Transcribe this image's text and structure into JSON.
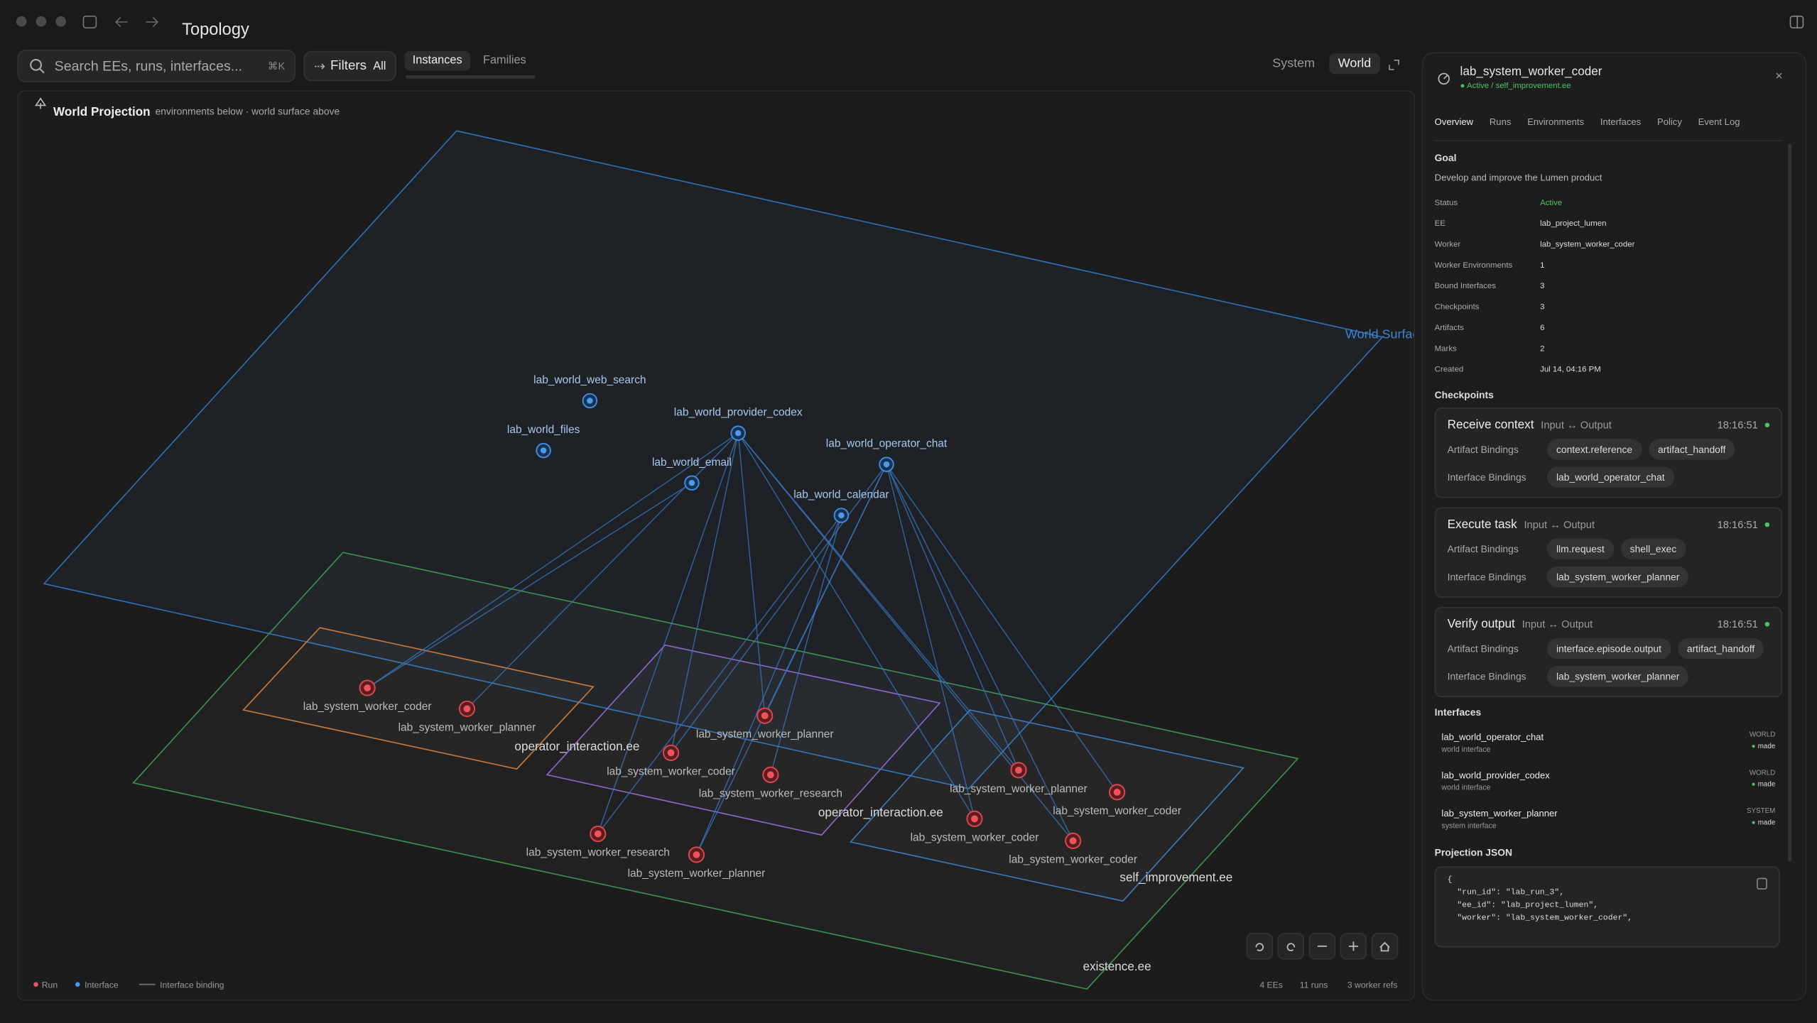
{
  "window": {
    "title": "Topology"
  },
  "toolbar": {
    "search_placeholder": "Search EEs, runs, interfaces...",
    "shortcut": "⌘K",
    "filters": "Filters",
    "filters_value": "All",
    "tabs": [
      "Instances",
      "Families"
    ],
    "views": [
      "System",
      "World"
    ]
  },
  "canvas": {
    "title": "World Projection",
    "subtitle": "environments below · world surface above",
    "surface_label": "World Surface",
    "interfaces": [
      "lab_world_web_search",
      "lab_world_files",
      "lab_world_provider_codex",
      "lab_world_email",
      "lab_world_operator_chat",
      "lab_world_calendar"
    ],
    "environments": [
      "existence.ee",
      "operator_interaction.ee",
      "operator_interaction.ee",
      "self_improvement.ee"
    ],
    "runs": [
      "lab_system_worker_coder",
      "lab_system_worker_planner",
      "lab_system_worker_planner",
      "lab_system_worker_coder",
      "lab_system_worker_research",
      "lab_system_worker_research",
      "lab_system_worker_planner",
      "lab_system_worker_planner",
      "lab_system_worker_coder",
      "lab_system_worker_coder",
      "lab_system_worker_coder"
    ],
    "legend": [
      "Run",
      "Interface",
      "Interface binding"
    ],
    "stats": [
      "4 EEs",
      "11 runs",
      "3 worker refs"
    ]
  },
  "panel": {
    "title": "lab_system_worker_coder",
    "status": "Active / self_improvement.ee",
    "tabs": [
      "Overview",
      "Runs",
      "Environments",
      "Interfaces",
      "Policy",
      "Event Log"
    ],
    "goal_heading": "Goal",
    "goal": "Develop and improve the Lumen product",
    "fields": [
      {
        "label": "Status",
        "value": "Active"
      },
      {
        "label": "EE",
        "value": "lab_project_lumen"
      },
      {
        "label": "Worker",
        "value": "lab_system_worker_coder"
      },
      {
        "label": "Worker Environments",
        "value": "1"
      },
      {
        "label": "Bound Interfaces",
        "value": "3"
      },
      {
        "label": "Checkpoints",
        "value": "3"
      },
      {
        "label": "Artifacts",
        "value": "6"
      },
      {
        "label": "Marks",
        "value": "2"
      },
      {
        "label": "Created",
        "value": "Jul 14, 04:16 PM"
      }
    ],
    "checkpoints_heading": "Checkpoints",
    "checkpoints": [
      {
        "name": "Receive context",
        "io": "Input ↔ Output",
        "time": "18:16:51",
        "artifact_label": "Artifact Bindings",
        "artifacts": [
          "context.reference",
          "artifact_handoff"
        ],
        "interface_label": "Interface Bindings",
        "interfaces": [
          "lab_world_operator_chat"
        ]
      },
      {
        "name": "Execute task",
        "io": "Input ↔ Output",
        "time": "18:16:51",
        "artifact_label": "Artifact Bindings",
        "artifacts": [
          "llm.request",
          "shell_exec"
        ],
        "interface_label": "Interface Bindings",
        "interfaces": [
          "lab_system_worker_planner"
        ]
      },
      {
        "name": "Verify output",
        "io": "Input ↔ Output",
        "time": "18:16:51",
        "artifact_label": "Artifact Bindings",
        "artifacts": [
          "interface.episode.output",
          "artifact_handoff"
        ],
        "interface_label": "Interface Bindings",
        "interfaces": [
          "lab_system_worker_planner"
        ]
      }
    ],
    "interfaces_heading": "Interfaces",
    "interfaces": [
      {
        "name": "lab_world_operator_chat",
        "desc": "world interface",
        "scope": "WORLD",
        "state": "made"
      },
      {
        "name": "lab_world_provider_codex",
        "desc": "world interface",
        "scope": "WORLD",
        "state": "made"
      },
      {
        "name": "lab_system_worker_planner",
        "desc": "system interface",
        "scope": "SYSTEM",
        "state": "made"
      }
    ],
    "json_heading": "Projection JSON",
    "json_lines": [
      "{",
      "  \"run_id\": \"lab_run_3\",",
      "  \"ee_id\": \"lab_project_lumen\",",
      "  \"worker\": \"lab_system_worker_coder\","
    ]
  }
}
